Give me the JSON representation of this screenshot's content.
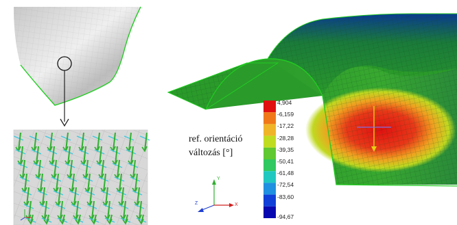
{
  "caption": {
    "line1": "ref. orientáció",
    "line2": "változás [°]"
  },
  "legend": {
    "values": [
      "4,904",
      "-6,159",
      "-17,22",
      "-28,28",
      "-39,35",
      "-50,41",
      "-61,48",
      "-72,54",
      "-83,60",
      "-94,67"
    ],
    "colors": [
      "#e01010",
      "#f07818",
      "#f0b428",
      "#c0dc20",
      "#60c830",
      "#30c860",
      "#20c8c0",
      "#2090e0",
      "#1040d8",
      "#0808b0"
    ]
  },
  "axes": {
    "x": "X",
    "y": "Y",
    "z": "Z"
  },
  "colors": {
    "mesh_green": "#2a9a2a",
    "outline_green": "#22cc22",
    "glyph_green": "#30b030",
    "glyph_cyan": "#3cc8e0"
  }
}
